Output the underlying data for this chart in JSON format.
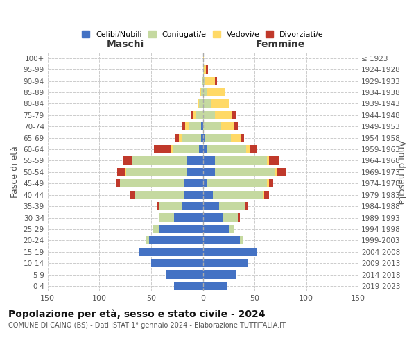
{
  "age_groups": [
    "0-4",
    "5-9",
    "10-14",
    "15-19",
    "20-24",
    "25-29",
    "30-34",
    "35-39",
    "40-44",
    "45-49",
    "50-54",
    "55-59",
    "60-64",
    "65-69",
    "70-74",
    "75-79",
    "80-84",
    "85-89",
    "90-94",
    "95-99",
    "100+"
  ],
  "birth_years": [
    "2019-2023",
    "2014-2018",
    "2009-2013",
    "2004-2008",
    "1999-2003",
    "1994-1998",
    "1989-1993",
    "1984-1988",
    "1979-1983",
    "1974-1978",
    "1969-1973",
    "1964-1968",
    "1959-1963",
    "1954-1958",
    "1949-1953",
    "1944-1948",
    "1939-1943",
    "1934-1938",
    "1929-1933",
    "1924-1928",
    "≤ 1923"
  ],
  "maschi": {
    "celibi": [
      28,
      35,
      50,
      62,
      52,
      42,
      28,
      20,
      18,
      18,
      16,
      16,
      4,
      2,
      2,
      0,
      0,
      0,
      0,
      0,
      0
    ],
    "coniugati": [
      0,
      0,
      0,
      0,
      3,
      6,
      14,
      22,
      48,
      62,
      58,
      52,
      25,
      18,
      12,
      7,
      4,
      2,
      1,
      0,
      0
    ],
    "vedovi": [
      0,
      0,
      0,
      0,
      0,
      0,
      0,
      0,
      0,
      0,
      1,
      1,
      2,
      3,
      3,
      2,
      1,
      1,
      0,
      0,
      0
    ],
    "divorziati": [
      0,
      0,
      0,
      0,
      0,
      0,
      0,
      2,
      4,
      4,
      8,
      8,
      16,
      4,
      3,
      2,
      0,
      0,
      0,
      0,
      0
    ]
  },
  "femmine": {
    "nubili": [
      24,
      32,
      44,
      52,
      36,
      26,
      20,
      16,
      10,
      4,
      12,
      12,
      4,
      2,
      0,
      0,
      0,
      0,
      0,
      0,
      0
    ],
    "coniugate": [
      0,
      0,
      0,
      0,
      3,
      4,
      14,
      25,
      48,
      58,
      58,
      50,
      38,
      25,
      18,
      12,
      8,
      4,
      2,
      1,
      0
    ],
    "vedove": [
      0,
      0,
      0,
      0,
      0,
      0,
      0,
      0,
      1,
      2,
      2,
      2,
      4,
      10,
      12,
      16,
      18,
      18,
      10,
      2,
      1
    ],
    "divorziate": [
      0,
      0,
      0,
      0,
      0,
      0,
      2,
      2,
      5,
      4,
      8,
      10,
      6,
      3,
      4,
      4,
      0,
      0,
      2,
      2,
      0
    ]
  },
  "colors": {
    "celibi": "#4472c4",
    "coniugati": "#c5d9a0",
    "vedovi": "#ffd966",
    "divorziati": "#c0392b"
  },
  "legend_labels": [
    "Celibi/Nubili",
    "Coniugati/e",
    "Vedovi/e",
    "Divorziati/e"
  ],
  "title": "Popolazione per età, sesso e stato civile - 2024",
  "subtitle": "COMUNE DI CAINO (BS) - Dati ISTAT 1° gennaio 2024 - Elaborazione TUTTITALIA.IT",
  "xlabel_left": "Maschi",
  "xlabel_right": "Femmine",
  "ylabel_left": "Fasce di età",
  "ylabel_right": "Anni di nascita",
  "xlim": 150,
  "background_color": "#ffffff",
  "grid_color": "#cccccc"
}
